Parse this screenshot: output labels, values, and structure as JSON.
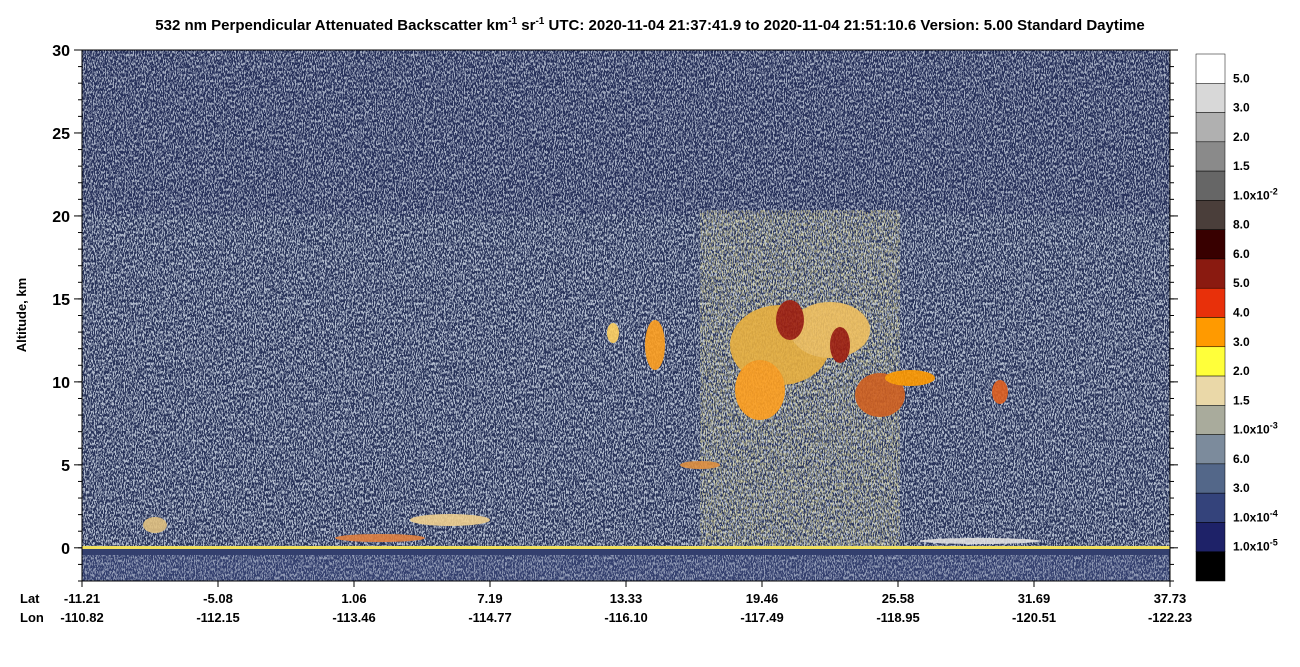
{
  "chart_data": {
    "type": "curtain",
    "title_parts": [
      "532 nm Perpendicular Attenuated Backscatter km",
      "-1",
      " sr",
      "-1",
      "  UTC: 2020-11-04 21:37:41.9 to 2020-11-04 21:51:10.6  Version: 5.00 Standard Daytime"
    ],
    "ylabel": "Altitude, km",
    "ylim": [
      -2,
      30
    ],
    "yticks": [
      0,
      5,
      10,
      15,
      20,
      25,
      30
    ],
    "x_row_labels": [
      "Lat",
      "Lon"
    ],
    "lat_labels": [
      "-11.21",
      "-5.08",
      "1.06",
      "7.19",
      "13.33",
      "19.46",
      "25.58",
      "31.69",
      "37.73"
    ],
    "lon_labels": [
      "-110.82",
      "-112.15",
      "-113.46",
      "-114.77",
      "-116.10",
      "-117.49",
      "-118.95",
      "-120.51",
      "-122.23"
    ],
    "colorbar": {
      "colors": [
        "#ffffff",
        "#d8d8d8",
        "#b0b0b0",
        "#8a8a8a",
        "#666666",
        "#4a3e3a",
        "#380000",
        "#8a1a10",
        "#e8300a",
        "#ff9a00",
        "#ffff3a",
        "#ead8a8",
        "#a9ab9c",
        "#7c8b9c",
        "#536789",
        "#34437b",
        "#1e2268",
        "#000000"
      ],
      "labels": [
        {
          "text": "5.0"
        },
        {
          "text": "3.0"
        },
        {
          "text": "2.0"
        },
        {
          "text": "1.5"
        },
        {
          "text": "1.0x10",
          "sup": "-2"
        },
        {
          "text": "8.0"
        },
        {
          "text": "6.0"
        },
        {
          "text": "5.0"
        },
        {
          "text": "4.0"
        },
        {
          "text": "3.0"
        },
        {
          "text": "2.0"
        },
        {
          "text": "1.5"
        },
        {
          "text": "1.0x10",
          "sup": "-3"
        },
        {
          "text": "6.0"
        },
        {
          "text": "3.0"
        },
        {
          "text": "1.0x10",
          "sup": "-4"
        },
        {
          "text": "1.0x10",
          "sup": "-5"
        }
      ]
    }
  }
}
